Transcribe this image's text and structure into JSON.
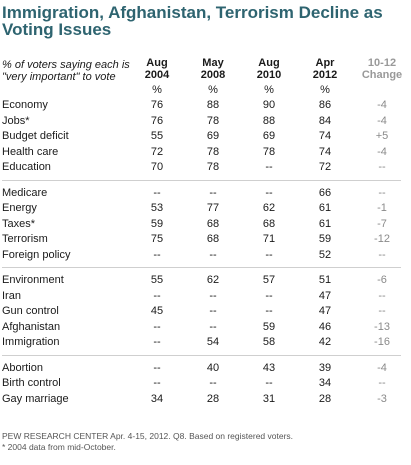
{
  "title": "Immigration, Afghanistan, Terrorism Decline as Voting Issues",
  "header_label": "% of voters saying each is \"very important\" to vote",
  "columns": [
    {
      "line1": "Aug",
      "line2": "2004",
      "pct": "%"
    },
    {
      "line1": "May",
      "line2": "2008",
      "pct": "%"
    },
    {
      "line1": "Aug",
      "line2": "2010",
      "pct": "%"
    },
    {
      "line1": "Apr",
      "line2": "2012",
      "pct": "%"
    },
    {
      "line1": "10-12",
      "line2": "Change",
      "pct": ""
    }
  ],
  "rows": [
    {
      "label": "Economy",
      "values": [
        "76",
        "88",
        "90",
        "86"
      ],
      "change": "-4"
    },
    {
      "label": "Jobs*",
      "values": [
        "76",
        "78",
        "88",
        "84"
      ],
      "change": "-4"
    },
    {
      "label": "Budget deficit",
      "values": [
        "55",
        "69",
        "69",
        "74"
      ],
      "change": "+5"
    },
    {
      "label": "Health care",
      "values": [
        "72",
        "78",
        "78",
        "74"
      ],
      "change": "-4"
    },
    {
      "label": "Education",
      "values": [
        "70",
        "78",
        "--",
        "72"
      ],
      "change": "--"
    },
    {
      "label": "Medicare",
      "values": [
        "--",
        "--",
        "--",
        "66"
      ],
      "change": "--"
    },
    {
      "label": "Energy",
      "values": [
        "53",
        "77",
        "62",
        "61"
      ],
      "change": "-1"
    },
    {
      "label": "Taxes*",
      "values": [
        "59",
        "68",
        "68",
        "61"
      ],
      "change": "-7"
    },
    {
      "label": "Terrorism",
      "values": [
        "75",
        "68",
        "71",
        "59"
      ],
      "change": "-12"
    },
    {
      "label": "Foreign policy",
      "values": [
        "--",
        "--",
        "--",
        "52"
      ],
      "change": "--"
    },
    {
      "label": "Environment",
      "values": [
        "55",
        "62",
        "57",
        "51"
      ],
      "change": "-6"
    },
    {
      "label": "Iran",
      "values": [
        "--",
        "--",
        "--",
        "47"
      ],
      "change": "--"
    },
    {
      "label": "Gun control",
      "values": [
        "45",
        "--",
        "--",
        "47"
      ],
      "change": "--"
    },
    {
      "label": "Afghanistan",
      "values": [
        "--",
        "--",
        "59",
        "46"
      ],
      "change": "-13"
    },
    {
      "label": "Immigration",
      "values": [
        "--",
        "54",
        "58",
        "42"
      ],
      "change": "-16"
    },
    {
      "label": "Abortion",
      "values": [
        "--",
        "40",
        "43",
        "39"
      ],
      "change": "-4"
    },
    {
      "label": "Birth control",
      "values": [
        "--",
        "--",
        "--",
        "34"
      ],
      "change": "--"
    },
    {
      "label": "Gay marriage",
      "values": [
        "34",
        "28",
        "31",
        "28"
      ],
      "change": "-3"
    }
  ],
  "footnote_1": "PEW RESEARCH CENTER Apr. 4-15, 2012. Q8. Based on registered voters.",
  "footnote_2": "* 2004 data from mid-October.",
  "colors": {
    "title": "#2e6470",
    "change": "#8a8a8a",
    "rule": "#cfcfcf"
  }
}
